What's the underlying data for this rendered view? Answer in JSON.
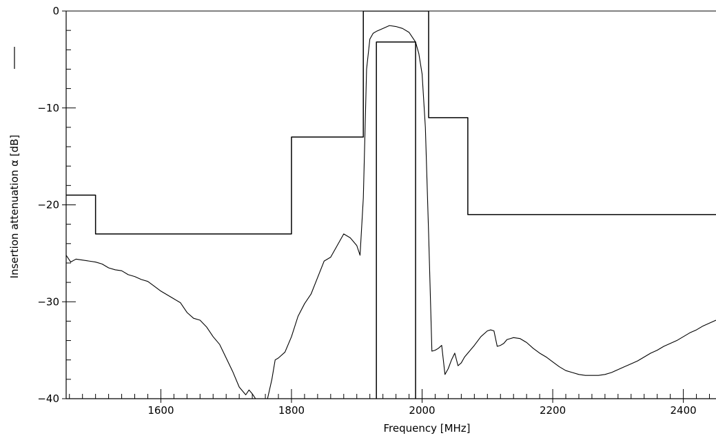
{
  "chart_data": {
    "type": "line",
    "xlabel": "Frequency [MHz]",
    "ylabel": "Insertion attenuation α [dB]",
    "xlim": [
      1455,
      2450
    ],
    "ylim": [
      -40,
      0
    ],
    "x_ticks": [
      1600,
      1800,
      2000,
      2200,
      2400
    ],
    "x_tick_labels": [
      "1600",
      "1800",
      "2000",
      "2200",
      "2400"
    ],
    "y_ticks": [
      0,
      -10,
      -20,
      -30,
      -40
    ],
    "y_tick_labels": [
      "0",
      "−10",
      "−20",
      "−30",
      "−40"
    ],
    "grid": false,
    "legend": "line sample next to y-axis label",
    "series": [
      {
        "role": "measured response",
        "color": "#000000",
        "x": [
          1455,
          1462,
          1470,
          1480,
          1490,
          1500,
          1510,
          1520,
          1530,
          1540,
          1550,
          1560,
          1570,
          1580,
          1590,
          1600,
          1610,
          1620,
          1630,
          1640,
          1650,
          1660,
          1670,
          1680,
          1690,
          1700,
          1710,
          1720,
          1730,
          1735,
          1740,
          1745,
          1750,
          1760,
          1770,
          1775,
          1780,
          1790,
          1800,
          1810,
          1820,
          1830,
          1840,
          1850,
          1860,
          1870,
          1880,
          1890,
          1900,
          1905,
          1910,
          1915,
          1920,
          1925,
          1930,
          1940,
          1950,
          1960,
          1970,
          1980,
          1990,
          1995,
          2000,
          2005,
          2010,
          2015,
          2020,
          2025,
          2030,
          2035,
          2040,
          2045,
          2050,
          2055,
          2060,
          2065,
          2070,
          2080,
          2090,
          2100,
          2105,
          2110,
          2115,
          2120,
          2125,
          2130,
          2135,
          2140,
          2150,
          2160,
          2170,
          2180,
          2190,
          2200,
          2210,
          2220,
          2230,
          2240,
          2250,
          2260,
          2270,
          2280,
          2290,
          2300,
          2310,
          2320,
          2330,
          2340,
          2350,
          2360,
          2370,
          2380,
          2390,
          2400,
          2410,
          2420,
          2430,
          2440,
          2450
        ],
        "y": [
          -25.2,
          -25.9,
          -25.6,
          -25.7,
          -25.8,
          -25.9,
          -26.1,
          -26.5,
          -26.7,
          -26.8,
          -27.2,
          -27.4,
          -27.7,
          -27.9,
          -28.4,
          -28.9,
          -29.3,
          -29.7,
          -30.1,
          -31.1,
          -31.7,
          -31.9,
          -32.6,
          -33.6,
          -34.4,
          -35.8,
          -37.2,
          -38.8,
          -39.6,
          -39.1,
          -39.5,
          -40.0,
          -40.5,
          -41.0,
          -38.0,
          -36.0,
          -35.8,
          -35.2,
          -33.6,
          -31.5,
          -30.2,
          -29.2,
          -27.5,
          -25.8,
          -25.4,
          -24.2,
          -23.0,
          -23.4,
          -24.2,
          -25.2,
          -19.3,
          -6.0,
          -2.9,
          -2.3,
          -2.1,
          -1.8,
          -1.5,
          -1.6,
          -1.8,
          -2.2,
          -3.2,
          -4.4,
          -6.5,
          -12.0,
          -23.0,
          -35.1,
          -35.0,
          -34.8,
          -34.5,
          -37.5,
          -36.9,
          -36.0,
          -35.3,
          -36.6,
          -36.3,
          -35.7,
          -35.3,
          -34.5,
          -33.6,
          -33.0,
          -32.9,
          -33.0,
          -34.6,
          -34.5,
          -34.3,
          -33.9,
          -33.8,
          -33.7,
          -33.8,
          -34.2,
          -34.8,
          -35.3,
          -35.7,
          -36.2,
          -36.7,
          -37.1,
          -37.3,
          -37.5,
          -37.6,
          -37.6,
          -37.6,
          -37.5,
          -37.3,
          -37.0,
          -36.7,
          -36.4,
          -36.1,
          -35.7,
          -35.3,
          -35.0,
          -34.6,
          -34.3,
          -34.0,
          -33.6,
          -33.2,
          -32.9,
          -32.5,
          -32.2,
          -31.9
        ]
      },
      {
        "role": "attenuation mask",
        "color": "#000000",
        "x": [
          1455,
          1500,
          1500,
          1800,
          1800,
          1910,
          1910,
          2010,
          2010,
          2070,
          2070,
          2450
        ],
        "y": [
          -19,
          -19,
          -23,
          -23,
          -13,
          -13,
          0,
          0,
          -11,
          -11,
          -21,
          -21
        ]
      },
      {
        "role": "passband mask",
        "color": "#000000",
        "x": [
          1930,
          1930,
          1990,
          1990
        ],
        "y": [
          -40,
          -3.2,
          -3.2,
          -40
        ]
      }
    ]
  }
}
